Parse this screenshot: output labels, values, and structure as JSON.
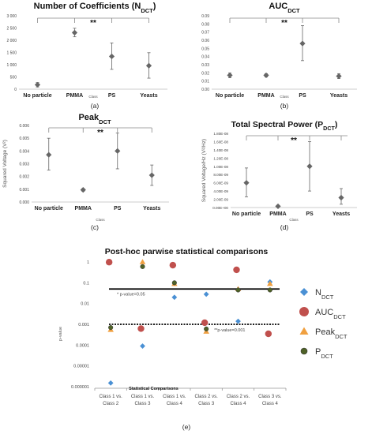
{
  "chart_data": [
    {
      "id": "a",
      "type": "scatter",
      "title": "Number of Coefficients (N",
      "title_sub": "DCT",
      "title_suffix": ")",
      "xlabel": "Class",
      "ylabel": "",
      "panel_label": "(a)",
      "categories": [
        "No particle",
        "PMMA",
        "PS",
        "Yeasts"
      ],
      "values": [
        180,
        2310,
        1340,
        960
      ],
      "err_low": [
        90,
        2140,
        810,
        450
      ],
      "err_high": [
        270,
        2490,
        1890,
        1490
      ],
      "ylim": [
        0,
        3000
      ],
      "yticks": [
        "0",
        "500",
        "1 000",
        "1 500",
        "2 000",
        "2 500",
        "3 000"
      ],
      "significance": "**"
    },
    {
      "id": "b",
      "type": "scatter",
      "title": "AUC",
      "title_sub": "DCT",
      "title_suffix": "",
      "xlabel": "Class",
      "ylabel": "",
      "panel_label": "(b)",
      "categories": [
        "No particle",
        "PMMA",
        "PS",
        "Yeasts"
      ],
      "values": [
        0.017,
        0.017,
        0.056,
        0.016
      ],
      "err_low": [
        0.014,
        0.015,
        0.035,
        0.013
      ],
      "err_high": [
        0.02,
        0.019,
        0.078,
        0.019
      ],
      "ylim": [
        0,
        0.09
      ],
      "yticks": [
        "0.00",
        "0.01",
        "0.02",
        "0.03",
        "0.04",
        "0.05",
        "0.06",
        "0.07",
        "0.08",
        "0.09"
      ],
      "significance": "**"
    },
    {
      "id": "c",
      "type": "scatter",
      "title": "Peak",
      "title_sub": "DCT",
      "title_suffix": "",
      "xlabel": "Class",
      "ylabel": "Squared Voltage (V²)",
      "panel_label": "(c)",
      "categories": [
        "No particle",
        "PMMA",
        "PS",
        "Yeasts"
      ],
      "values": [
        0.0037,
        0.00095,
        0.004,
        0.0021
      ],
      "err_low": [
        0.0025,
        0.00085,
        0.0026,
        0.0013
      ],
      "err_high": [
        0.005,
        0.00105,
        0.0054,
        0.0029
      ],
      "ylim": [
        0,
        0.006
      ],
      "yticks": [
        "0.000",
        "0.001",
        "0.002",
        "0.003",
        "0.004",
        "0.005",
        "0.006"
      ],
      "significance": "**"
    },
    {
      "id": "d",
      "type": "scatter",
      "title": "Total Spectral Power (P",
      "title_sub": "DCT",
      "title_suffix": ")",
      "xlabel": "Class",
      "ylabel": "Squared Voltage/Hz (V²/Hz)",
      "panel_label": "(d)",
      "categories": [
        "No particle",
        "PMMA",
        "PS",
        "Yeasts"
      ],
      "values": [
        6e-09,
        3e-10,
        1e-08,
        2.4e-09
      ],
      "err_low": [
        2.6e-09,
        1.5e-10,
        4e-09,
        8e-10
      ],
      "err_high": [
        9.6e-09,
        5e-10,
        1.6e-08,
        4.6e-09
      ],
      "ylim": [
        0,
        1.8e-08
      ],
      "yticks": [
        "0.00E+00",
        "2.00E-09",
        "4.00E-09",
        "6.00E-09",
        "8.00E-09",
        "1.00E-08",
        "1.20E-08",
        "1.40E-08",
        "1.60E-08",
        "1.80E-08"
      ],
      "significance": "**"
    },
    {
      "id": "e",
      "type": "scatter",
      "title": "Post-hoc parwise statistical comparisons",
      "xlabel": "Statistical Comparisons",
      "ylabel": "p-value",
      "panel_label": "(e)",
      "yscale": "log",
      "ylim": [
        1e-06,
        1
      ],
      "yticks": [
        "0.000001",
        "0.00001",
        "0.0001",
        "0.001",
        "0.01",
        "0.1",
        "1"
      ],
      "categories": [
        "Class 1 vs. Class 2",
        "Class 1 vs. Class 3",
        "Class 1 vs. Class 4",
        "Class 2 vs. Class 3",
        "Class 2 vs. Class 4",
        "Class 3 vs. Class 4"
      ],
      "category_lines": [
        [
          "Class 1 vs.",
          "Class 2"
        ],
        [
          "Class 1 vs.",
          "Class 3"
        ],
        [
          "Class 1 vs.",
          "Class 4"
        ],
        [
          "Class 2 vs.",
          "Class 3"
        ],
        [
          "Class 2 vs.",
          "Class 4"
        ],
        [
          "Class 3 vs.",
          "Class 4"
        ]
      ],
      "series": [
        {
          "name": "N",
          "sub": "DCT",
          "marker": "diamond",
          "color": "#4a90d4",
          "values": [
            1.5e-06,
            9e-05,
            0.02,
            0.028,
            0.0014,
            0.11
          ]
        },
        {
          "name": "AUC",
          "sub": "DCT",
          "marker": "circle",
          "color": "#c0504d",
          "values": [
            0.98,
            0.00062,
            0.7,
            0.0012,
            0.42,
            0.00035
          ]
        },
        {
          "name": "Peak",
          "sub": "DCT",
          "marker": "triangle",
          "color": "#f0a040",
          "values": [
            0.00055,
            1.0,
            0.09,
            0.00045,
            0.05,
            0.09
          ]
        },
        {
          "name": "P",
          "sub": "DCT",
          "marker": "circle-small",
          "color": "#4f6228",
          "values": [
            0.0007,
            0.6,
            0.1,
            0.0006,
            0.045,
            0.045
          ]
        }
      ],
      "thresholds": [
        {
          "value": 0.05,
          "label": "* p-value=0.05",
          "style": "solid"
        },
        {
          "value": 0.001,
          "label": "**p-value=0.001",
          "style": "dotted"
        }
      ]
    }
  ]
}
